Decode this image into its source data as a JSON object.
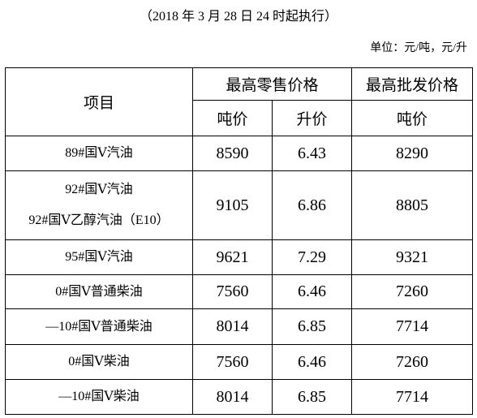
{
  "header": {
    "subtitle": "（2018 年 3 月 28 日 24 时起执行）",
    "unit": "单位：元/吨，元/升"
  },
  "table": {
    "item_header": "项目",
    "retail_header": "最高零售价格",
    "wholesale_header": "最高批发价格",
    "sub_headers": [
      "吨价",
      "升价",
      "吨价"
    ],
    "rows": [
      {
        "item": [
          "89#国Ⅴ汽油"
        ],
        "retail_ton": 8590,
        "retail_liter": 6.43,
        "wholesale_ton": 8290
      },
      {
        "item": [
          "92#国Ⅴ汽油",
          "92#国Ⅴ乙醇汽油（E10）"
        ],
        "retail_ton": 9105,
        "retail_liter": 6.86,
        "wholesale_ton": 8805
      },
      {
        "item": [
          "95#国Ⅴ汽油"
        ],
        "retail_ton": 9621,
        "retail_liter": 7.29,
        "wholesale_ton": 9321
      },
      {
        "item": [
          "0#国Ⅴ普通柴油"
        ],
        "retail_ton": 7560,
        "retail_liter": 6.46,
        "wholesale_ton": 7260
      },
      {
        "item": [
          "—10#国Ⅴ普通柴油"
        ],
        "retail_ton": 8014,
        "retail_liter": 6.85,
        "wholesale_ton": 7714
      },
      {
        "item": [
          "0#国Ⅴ柴油"
        ],
        "retail_ton": 7560,
        "retail_liter": 6.46,
        "wholesale_ton": 7260
      },
      {
        "item": [
          "—10#国Ⅴ柴油"
        ],
        "retail_ton": 8014,
        "retail_liter": 6.85,
        "wholesale_ton": 7714
      }
    ]
  }
}
